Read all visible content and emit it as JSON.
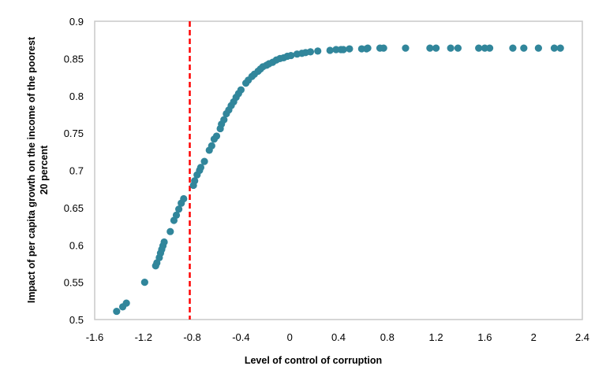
{
  "chart_data": {
    "type": "scatter",
    "title": "",
    "xlabel": "Level of control of corruption",
    "ylabel": [
      "Impact of per capita growth on the income of the poorest",
      "20 percent"
    ],
    "xlim": [
      -1.6,
      2.4
    ],
    "ylim": [
      0.5,
      0.9
    ],
    "xticks": [
      "-1.6",
      "-1.2",
      "-0.8",
      "-0.4",
      "0",
      "0.4",
      "0.8",
      "1.2",
      "1.6",
      "2",
      "2.4"
    ],
    "yticks": [
      "0.5",
      "0.55",
      "0.6",
      "0.65",
      "0.7",
      "0.75",
      "0.8",
      "0.85",
      "0.9"
    ],
    "grid": false,
    "legend": "none",
    "colors": {
      "points": "#31869B",
      "threshold": "#FF0000",
      "frame": "#C8C8C8"
    },
    "threshold_line": {
      "x": -0.82,
      "style": "dashed"
    },
    "points": [
      [
        -1.42,
        0.511
      ],
      [
        -1.37,
        0.517
      ],
      [
        -1.34,
        0.522
      ],
      [
        -1.19,
        0.55
      ],
      [
        -1.1,
        0.572
      ],
      [
        -1.09,
        0.576
      ],
      [
        -1.07,
        0.583
      ],
      [
        -1.06,
        0.589
      ],
      [
        -1.05,
        0.594
      ],
      [
        -1.04,
        0.599
      ],
      [
        -1.03,
        0.604
      ],
      [
        -0.98,
        0.618
      ],
      [
        -0.95,
        0.633
      ],
      [
        -0.93,
        0.64
      ],
      [
        -0.91,
        0.648
      ],
      [
        -0.89,
        0.656
      ],
      [
        -0.87,
        0.662
      ],
      [
        -0.79,
        0.68
      ],
      [
        -0.78,
        0.686
      ],
      [
        -0.76,
        0.694
      ],
      [
        -0.74,
        0.7
      ],
      [
        -0.73,
        0.704
      ],
      [
        -0.7,
        0.712
      ],
      [
        -0.66,
        0.727
      ],
      [
        -0.64,
        0.733
      ],
      [
        -0.62,
        0.742
      ],
      [
        -0.6,
        0.746
      ],
      [
        -0.57,
        0.756
      ],
      [
        -0.56,
        0.762
      ],
      [
        -0.54,
        0.768
      ],
      [
        -0.52,
        0.776
      ],
      [
        -0.5,
        0.781
      ],
      [
        -0.48,
        0.787
      ],
      [
        -0.46,
        0.792
      ],
      [
        -0.44,
        0.798
      ],
      [
        -0.42,
        0.803
      ],
      [
        -0.4,
        0.808
      ],
      [
        -0.36,
        0.817
      ],
      [
        -0.34,
        0.821
      ],
      [
        -0.31,
        0.826
      ],
      [
        -0.29,
        0.829
      ],
      [
        -0.26,
        0.833
      ],
      [
        -0.24,
        0.836
      ],
      [
        -0.22,
        0.839
      ],
      [
        -0.19,
        0.841
      ],
      [
        -0.17,
        0.843
      ],
      [
        -0.14,
        0.845
      ],
      [
        -0.11,
        0.848
      ],
      [
        -0.08,
        0.85
      ],
      [
        -0.05,
        0.851
      ],
      [
        -0.02,
        0.853
      ],
      [
        0.01,
        0.854
      ],
      [
        0.06,
        0.856
      ],
      [
        0.1,
        0.857
      ],
      [
        0.13,
        0.858
      ],
      [
        0.17,
        0.859
      ],
      [
        0.23,
        0.86
      ],
      [
        0.33,
        0.861
      ],
      [
        0.38,
        0.862
      ],
      [
        0.42,
        0.862
      ],
      [
        0.44,
        0.862
      ],
      [
        0.49,
        0.863
      ],
      [
        0.59,
        0.863
      ],
      [
        0.63,
        0.863
      ],
      [
        0.64,
        0.864
      ],
      [
        0.74,
        0.864
      ],
      [
        0.77,
        0.864
      ],
      [
        0.95,
        0.864
      ],
      [
        1.15,
        0.864
      ],
      [
        1.2,
        0.864
      ],
      [
        1.32,
        0.864
      ],
      [
        1.38,
        0.864
      ],
      [
        1.55,
        0.864
      ],
      [
        1.6,
        0.864
      ],
      [
        1.64,
        0.864
      ],
      [
        1.83,
        0.864
      ],
      [
        1.92,
        0.864
      ],
      [
        2.04,
        0.864
      ],
      [
        2.17,
        0.864
      ],
      [
        2.22,
        0.864
      ]
    ]
  }
}
